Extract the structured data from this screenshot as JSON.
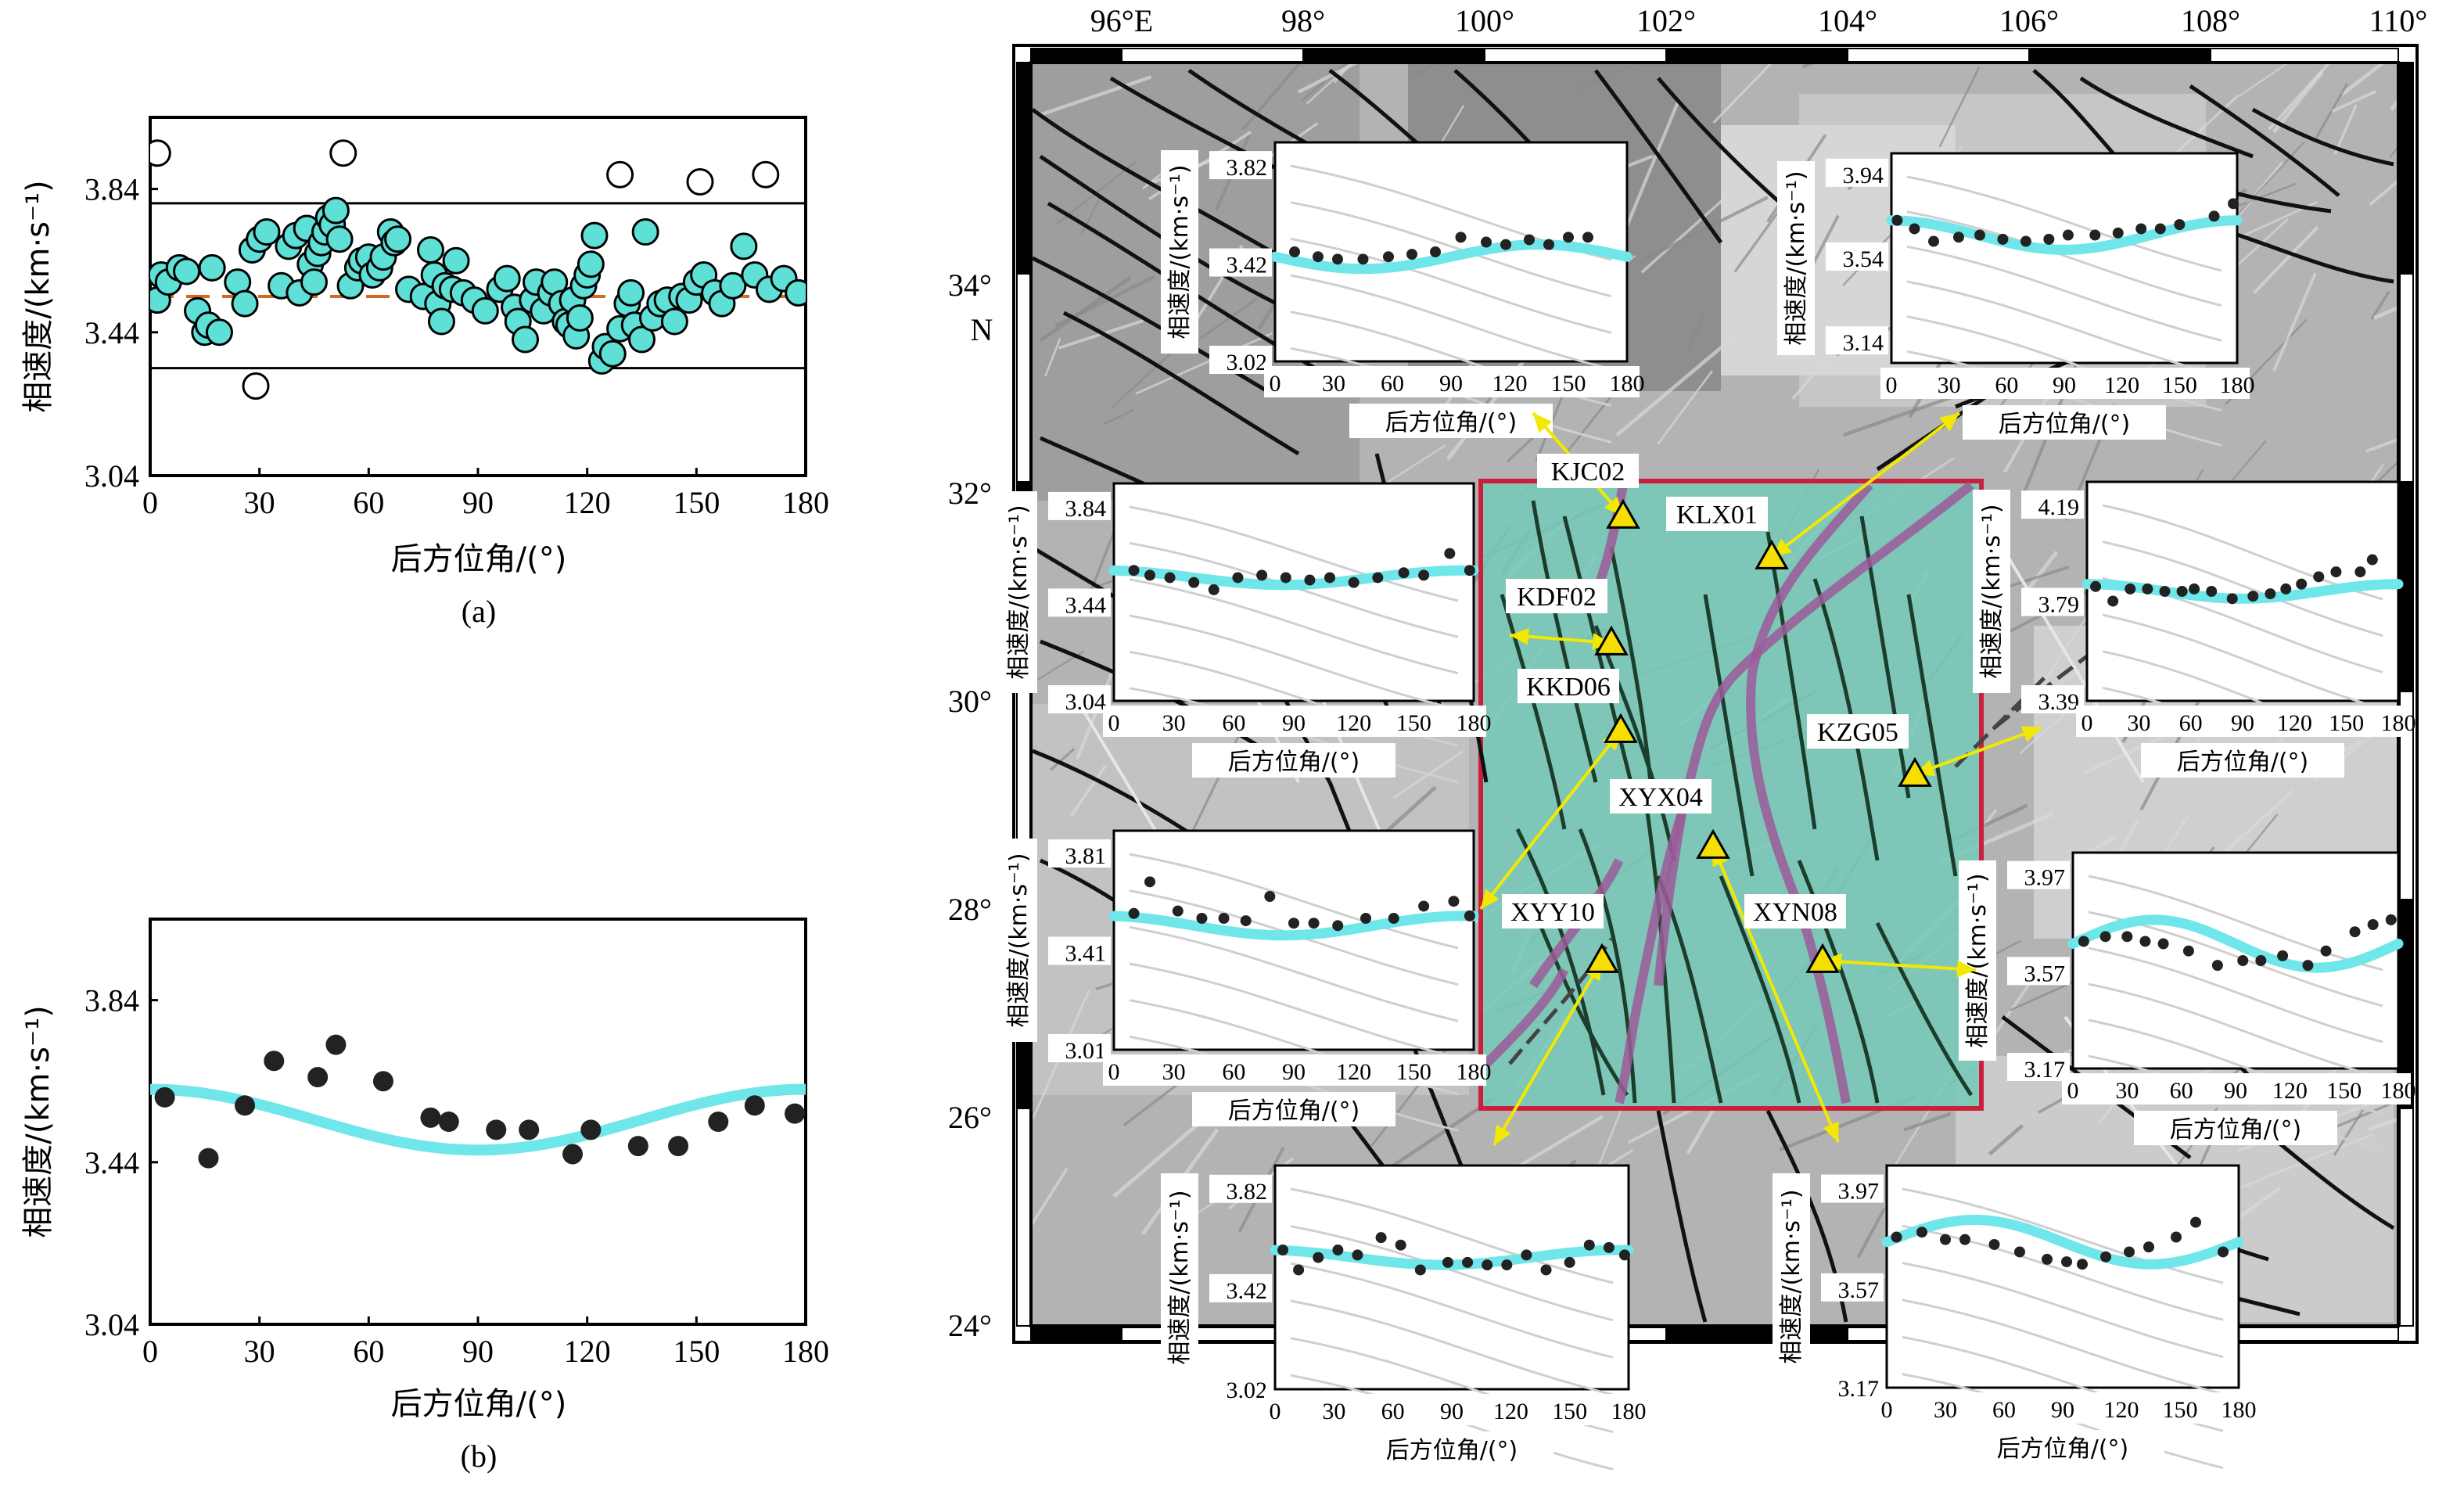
{
  "chart_data": [
    {
      "id": "a",
      "type": "scatter",
      "panel_label": "(a)",
      "xlabel": "后方位角/(°)",
      "ylabel": "相速度/(km·s⁻¹)",
      "xticks": [
        0,
        30,
        60,
        90,
        120,
        150,
        180
      ],
      "yticks": [
        "3.04",
        "3.44",
        "3.84"
      ],
      "xlim": [
        0,
        180
      ],
      "ylim": [
        3.04,
        4.04
      ],
      "mean_line": 3.54,
      "bounds": [
        3.34,
        3.8
      ],
      "points": [
        [
          2,
          3.53
        ],
        [
          3,
          3.6
        ],
        [
          5,
          3.58
        ],
        [
          8,
          3.62
        ],
        [
          10,
          3.61
        ],
        [
          13,
          3.5
        ],
        [
          15,
          3.44
        ],
        [
          16,
          3.46
        ],
        [
          17,
          3.62
        ],
        [
          19,
          3.44
        ],
        [
          24,
          3.58
        ],
        [
          26,
          3.52
        ],
        [
          28,
          3.67
        ],
        [
          30,
          3.7
        ],
        [
          32,
          3.72
        ],
        [
          36,
          3.57
        ],
        [
          38,
          3.68
        ],
        [
          40,
          3.71
        ],
        [
          41,
          3.55
        ],
        [
          43,
          3.73
        ],
        [
          44,
          3.63
        ],
        [
          45,
          3.58
        ],
        [
          46,
          3.66
        ],
        [
          47,
          3.69
        ],
        [
          48,
          3.72
        ],
        [
          49,
          3.76
        ],
        [
          50,
          3.74
        ],
        [
          51,
          3.78
        ],
        [
          52,
          3.7
        ],
        [
          55,
          3.57
        ],
        [
          57,
          3.62
        ],
        [
          58,
          3.64
        ],
        [
          60,
          3.65
        ],
        [
          61,
          3.6
        ],
        [
          63,
          3.62
        ],
        [
          64,
          3.65
        ],
        [
          66,
          3.72
        ],
        [
          67,
          3.69
        ],
        [
          68,
          3.7
        ],
        [
          71,
          3.56
        ],
        [
          75,
          3.54
        ],
        [
          77,
          3.67
        ],
        [
          78,
          3.6
        ],
        [
          79,
          3.52
        ],
        [
          80,
          3.47
        ],
        [
          81,
          3.57
        ],
        [
          83,
          3.56
        ],
        [
          84,
          3.64
        ],
        [
          86,
          3.55
        ],
        [
          89,
          3.53
        ],
        [
          92,
          3.5
        ],
        [
          96,
          3.56
        ],
        [
          98,
          3.59
        ],
        [
          100,
          3.51
        ],
        [
          101,
          3.47
        ],
        [
          103,
          3.42
        ],
        [
          105,
          3.53
        ],
        [
          106,
          3.58
        ],
        [
          108,
          3.5
        ],
        [
          110,
          3.55
        ],
        [
          111,
          3.58
        ],
        [
          113,
          3.52
        ],
        [
          114,
          3.47
        ],
        [
          115,
          3.46
        ],
        [
          116,
          3.53
        ],
        [
          117,
          3.43
        ],
        [
          118,
          3.48
        ],
        [
          119,
          3.57
        ],
        [
          120,
          3.6
        ],
        [
          121,
          3.63
        ],
        [
          122,
          3.71
        ],
        [
          124,
          3.36
        ],
        [
          125,
          3.4
        ],
        [
          127,
          3.38
        ],
        [
          129,
          3.45
        ],
        [
          131,
          3.52
        ],
        [
          132,
          3.55
        ],
        [
          133,
          3.46
        ],
        [
          135,
          3.42
        ],
        [
          136,
          3.72
        ],
        [
          138,
          3.48
        ],
        [
          140,
          3.52
        ],
        [
          142,
          3.53
        ],
        [
          144,
          3.47
        ],
        [
          146,
          3.54
        ],
        [
          148,
          3.53
        ],
        [
          150,
          3.58
        ],
        [
          152,
          3.6
        ],
        [
          155,
          3.55
        ],
        [
          157,
          3.52
        ],
        [
          160,
          3.57
        ],
        [
          163,
          3.68
        ],
        [
          166,
          3.6
        ],
        [
          170,
          3.56
        ],
        [
          174,
          3.59
        ],
        [
          178,
          3.55
        ]
      ],
      "outliers": [
        [
          2,
          3.94
        ],
        [
          29,
          3.29
        ],
        [
          53,
          3.94
        ],
        [
          129,
          3.88
        ],
        [
          151,
          3.86
        ],
        [
          169,
          3.88
        ]
      ]
    },
    {
      "id": "b",
      "type": "scatter",
      "panel_label": "(b)",
      "xlabel": "后方位角/(°)",
      "ylabel": "相速度/(km·s⁻¹)",
      "xticks": [
        0,
        30,
        60,
        90,
        120,
        150,
        180
      ],
      "yticks": [
        "3.04",
        "3.44",
        "3.84"
      ],
      "xlim": [
        0,
        180
      ],
      "ylim": [
        3.04,
        4.04
      ],
      "fit": {
        "mean": 3.545,
        "amp": 0.075,
        "phase_deg": 45
      },
      "points": [
        [
          4,
          3.6
        ],
        [
          16,
          3.45
        ],
        [
          26,
          3.58
        ],
        [
          34,
          3.69
        ],
        [
          46,
          3.65
        ],
        [
          51,
          3.73
        ],
        [
          64,
          3.64
        ],
        [
          77,
          3.55
        ],
        [
          82,
          3.54
        ],
        [
          95,
          3.52
        ],
        [
          104,
          3.52
        ],
        [
          116,
          3.46
        ],
        [
          121,
          3.52
        ],
        [
          134,
          3.48
        ],
        [
          145,
          3.48
        ],
        [
          156,
          3.54
        ],
        [
          166,
          3.58
        ],
        [
          177,
          3.56
        ]
      ]
    }
  ],
  "map": {
    "top_labels": [
      "96°E",
      "98°",
      "100°",
      "102°",
      "104°",
      "106°",
      "108°",
      "110°"
    ],
    "left_labels": [
      "34°",
      "32°",
      "30°",
      "28°",
      "26°",
      "24°"
    ],
    "north_label": "N",
    "stations": [
      "KJC02",
      "KLX01",
      "KDF02",
      "KKD06",
      "KZG05",
      "XYX04",
      "XYY10",
      "XYN08"
    ],
    "colors": {
      "box": "#cc1f3d",
      "region": "#74c9b8",
      "fit": "#6fe6ea",
      "arrow": "#f3e800",
      "triangle": "#f6df00"
    }
  },
  "insets": [
    {
      "yticks": [
        "3.82",
        "3.42",
        "3.02"
      ],
      "xticks": [
        0,
        30,
        60,
        90,
        120,
        150,
        180
      ],
      "ylabel": "相速度/(km·s⁻¹)",
      "xlabel": "后方位角/(°)",
      "ylim": [
        3.02,
        3.92
      ],
      "fit": {
        "mean": 3.45,
        "amp": 0.05,
        "phase": 90
      },
      "points": [
        [
          10,
          3.47
        ],
        [
          22,
          3.45
        ],
        [
          32,
          3.44
        ],
        [
          45,
          3.44
        ],
        [
          58,
          3.45
        ],
        [
          70,
          3.46
        ],
        [
          82,
          3.47
        ],
        [
          95,
          3.53
        ],
        [
          108,
          3.51
        ],
        [
          118,
          3.5
        ],
        [
          130,
          3.52
        ],
        [
          140,
          3.5
        ],
        [
          150,
          3.53
        ],
        [
          160,
          3.53
        ]
      ]
    },
    {
      "yticks": [
        "3.94",
        "3.54",
        "3.14"
      ],
      "xticks": [
        0,
        30,
        60,
        90,
        120,
        150,
        180
      ],
      "ylabel": "相速度/(km·s⁻¹)",
      "xlabel": "后方位角/(°)",
      "ylim": [
        3.04,
        4.04
      ],
      "fit": {
        "mean": 3.65,
        "amp": 0.07,
        "phase": 45
      },
      "points": [
        [
          3,
          3.72
        ],
        [
          12,
          3.68
        ],
        [
          22,
          3.62
        ],
        [
          35,
          3.64
        ],
        [
          46,
          3.65
        ],
        [
          58,
          3.63
        ],
        [
          70,
          3.62
        ],
        [
          82,
          3.63
        ],
        [
          92,
          3.65
        ],
        [
          106,
          3.65
        ],
        [
          118,
          3.66
        ],
        [
          130,
          3.68
        ],
        [
          140,
          3.68
        ],
        [
          150,
          3.7
        ],
        [
          168,
          3.74
        ],
        [
          178,
          3.8
        ]
      ]
    },
    {
      "yticks": [
        "3.84",
        "3.44",
        "3.04"
      ],
      "xticks": [
        0,
        30,
        60,
        90,
        120,
        150,
        180
      ],
      "ylabel": "相速度/(km·s⁻¹)",
      "xlabel": "后方位角/(°)",
      "ylim": [
        3.04,
        3.94
      ],
      "fit": {
        "mean": 3.55,
        "amp": 0.03,
        "phase": 50
      },
      "points": [
        [
          10,
          3.58
        ],
        [
          18,
          3.56
        ],
        [
          28,
          3.55
        ],
        [
          40,
          3.53
        ],
        [
          50,
          3.5
        ],
        [
          62,
          3.55
        ],
        [
          74,
          3.56
        ],
        [
          86,
          3.55
        ],
        [
          98,
          3.54
        ],
        [
          108,
          3.55
        ],
        [
          120,
          3.53
        ],
        [
          132,
          3.55
        ],
        [
          145,
          3.57
        ],
        [
          155,
          3.56
        ],
        [
          168,
          3.65
        ],
        [
          178,
          3.58
        ]
      ]
    },
    {
      "yticks": [
        "4.19",
        "3.79",
        "3.39"
      ],
      "xticks": [
        0,
        30,
        60,
        90,
        120,
        150,
        180
      ],
      "ylabel": "相速度/(km·s⁻¹)",
      "xlabel": "后方位角/(°)",
      "ylim": [
        3.39,
        4.29
      ],
      "fit": {
        "mean": 3.84,
        "amp": 0.03,
        "phase": 45
      },
      "points": [
        [
          5,
          3.86
        ],
        [
          15,
          3.8
        ],
        [
          25,
          3.85
        ],
        [
          35,
          3.85
        ],
        [
          45,
          3.84
        ],
        [
          55,
          3.84
        ],
        [
          62,
          3.85
        ],
        [
          72,
          3.84
        ],
        [
          84,
          3.81
        ],
        [
          96,
          3.82
        ],
        [
          106,
          3.83
        ],
        [
          115,
          3.85
        ],
        [
          124,
          3.87
        ],
        [
          134,
          3.9
        ],
        [
          144,
          3.92
        ],
        [
          158,
          3.92
        ],
        [
          165,
          3.97
        ]
      ]
    },
    {
      "yticks": [
        "3.81",
        "3.41",
        "3.01"
      ],
      "xticks": [
        0,
        30,
        60,
        90,
        120,
        150,
        180
      ],
      "ylabel": "相速度/(km·s⁻¹)",
      "xlabel": "后方位角/(°)",
      "ylim": [
        3.01,
        3.91
      ],
      "fit": {
        "mean": 3.52,
        "amp": 0.04,
        "phase": 50
      },
      "points": [
        [
          10,
          3.57
        ],
        [
          18,
          3.7
        ],
        [
          32,
          3.58
        ],
        [
          44,
          3.55
        ],
        [
          55,
          3.55
        ],
        [
          66,
          3.54
        ],
        [
          78,
          3.64
        ],
        [
          90,
          3.53
        ],
        [
          100,
          3.53
        ],
        [
          112,
          3.52
        ],
        [
          126,
          3.55
        ],
        [
          140,
          3.55
        ],
        [
          155,
          3.6
        ],
        [
          170,
          3.62
        ],
        [
          178,
          3.56
        ]
      ]
    },
    {
      "yticks": [
        "3.97",
        "3.57",
        "3.17"
      ],
      "xticks": [
        0,
        30,
        60,
        90,
        120,
        150,
        180
      ],
      "ylabel": "相速度/(km·s⁻¹)",
      "xlabel": "后方位角/(°)",
      "ylim": [
        3.17,
        4.07
      ],
      "fit": {
        "mean": 3.69,
        "amp": 0.1,
        "phase": 0
      },
      "points": [
        [
          6,
          3.7
        ],
        [
          18,
          3.72
        ],
        [
          30,
          3.72
        ],
        [
          40,
          3.7
        ],
        [
          50,
          3.69
        ],
        [
          64,
          3.66
        ],
        [
          80,
          3.6
        ],
        [
          94,
          3.62
        ],
        [
          104,
          3.62
        ],
        [
          116,
          3.64
        ],
        [
          130,
          3.6
        ],
        [
          140,
          3.66
        ],
        [
          156,
          3.74
        ],
        [
          166,
          3.77
        ],
        [
          176,
          3.79
        ]
      ]
    },
    {
      "yticks": [
        "3.82",
        "3.42",
        "3.02"
      ],
      "xticks": [
        0,
        30,
        60,
        90,
        120,
        150,
        180
      ],
      "ylabel": "相速度/(km·s⁻¹)",
      "xlabel": "后方位角/(°)",
      "ylim": [
        3.02,
        3.92
      ],
      "fit": {
        "mean": 3.55,
        "amp": 0.03,
        "phase": 50
      },
      "points": [
        [
          4,
          3.58
        ],
        [
          12,
          3.5
        ],
        [
          22,
          3.55
        ],
        [
          32,
          3.58
        ],
        [
          42,
          3.56
        ],
        [
          54,
          3.63
        ],
        [
          64,
          3.6
        ],
        [
          74,
          3.5
        ],
        [
          88,
          3.53
        ],
        [
          98,
          3.53
        ],
        [
          108,
          3.52
        ],
        [
          118,
          3.52
        ],
        [
          128,
          3.56
        ],
        [
          138,
          3.5
        ],
        [
          150,
          3.53
        ],
        [
          160,
          3.6
        ],
        [
          170,
          3.59
        ],
        [
          178,
          3.56
        ]
      ]
    },
    {
      "yticks": [
        "3.97",
        "3.57",
        "3.17"
      ],
      "xticks": [
        0,
        30,
        60,
        90,
        120,
        150,
        180
      ],
      "ylabel": "相速度/(km·s⁻¹)",
      "xlabel": "后方位角/(°)",
      "ylim": [
        3.17,
        4.07
      ],
      "fit": {
        "mean": 3.76,
        "amp": 0.09,
        "phase": 0
      },
      "points": [
        [
          5,
          3.78
        ],
        [
          18,
          3.8
        ],
        [
          30,
          3.77
        ],
        [
          40,
          3.77
        ],
        [
          55,
          3.75
        ],
        [
          68,
          3.72
        ],
        [
          82,
          3.69
        ],
        [
          92,
          3.68
        ],
        [
          100,
          3.67
        ],
        [
          112,
          3.7
        ],
        [
          124,
          3.72
        ],
        [
          134,
          3.74
        ],
        [
          148,
          3.78
        ],
        [
          158,
          3.84
        ],
        [
          172,
          3.72
        ]
      ]
    }
  ]
}
